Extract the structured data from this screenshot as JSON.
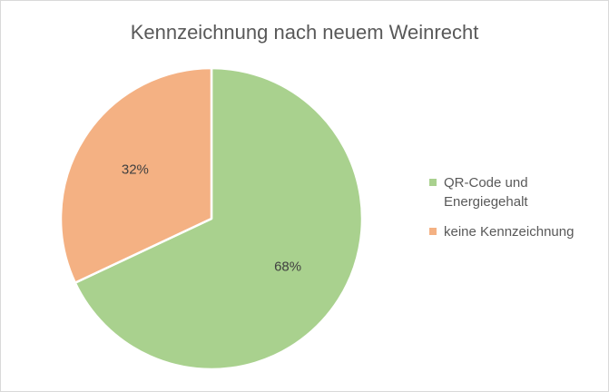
{
  "chart_data": {
    "type": "pie",
    "title": "Kennzeichnung nach neuem Weinrecht",
    "categories": [
      "QR-Code und Energiegehalt",
      "keine Kennzeichnung"
    ],
    "values": [
      68,
      32
    ],
    "labels": [
      "68%",
      "32%"
    ],
    "colors": [
      "#a9d18e",
      "#f4b183"
    ],
    "legend_position": "right"
  }
}
